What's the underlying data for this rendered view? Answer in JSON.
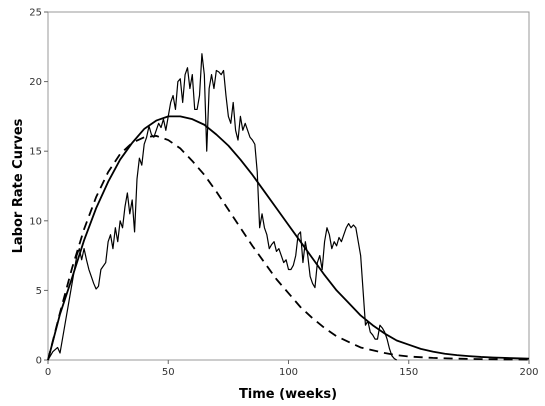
{
  "chart_data": {
    "type": "line",
    "title": "",
    "xlabel": "Time (weeks)",
    "ylabel": "Labor Rate Curves",
    "xlim": [
      0,
      200
    ],
    "ylim": [
      0,
      25
    ],
    "x_ticks": [
      0,
      50,
      100,
      150,
      200
    ],
    "y_ticks": [
      0,
      5,
      10,
      15,
      20,
      25
    ],
    "grid": false,
    "legend": "none",
    "series": [
      {
        "style": "solid-thin",
        "points": [
          [
            0,
            0
          ],
          [
            2,
            0.6
          ],
          [
            4,
            0.9
          ],
          [
            5,
            0.5
          ],
          [
            7,
            2.5
          ],
          [
            9,
            4.5
          ],
          [
            11,
            6.5
          ],
          [
            12,
            7.5
          ],
          [
            13,
            8.0
          ],
          [
            14,
            7.2
          ],
          [
            15,
            8.0
          ],
          [
            16,
            7.2
          ],
          [
            17,
            6.5
          ],
          [
            18,
            6.0
          ],
          [
            19,
            5.5
          ],
          [
            20,
            5.1
          ],
          [
            21,
            5.3
          ],
          [
            22,
            6.5
          ],
          [
            24,
            7.0
          ],
          [
            25,
            8.5
          ],
          [
            26,
            9.0
          ],
          [
            27,
            8.0
          ],
          [
            28,
            9.5
          ],
          [
            29,
            8.5
          ],
          [
            30,
            10.0
          ],
          [
            31,
            9.5
          ],
          [
            32,
            11.0
          ],
          [
            33,
            12.0
          ],
          [
            34,
            10.5
          ],
          [
            35,
            11.5
          ],
          [
            36,
            9.2
          ],
          [
            37,
            13.0
          ],
          [
            38,
            14.5
          ],
          [
            39,
            14.0
          ],
          [
            40,
            15.5
          ],
          [
            41,
            16.0
          ],
          [
            42,
            16.8
          ],
          [
            43,
            16.2
          ],
          [
            44,
            16.0
          ],
          [
            45,
            16.5
          ],
          [
            46,
            17.0
          ],
          [
            47,
            16.7
          ],
          [
            48,
            17.3
          ],
          [
            49,
            16.5
          ],
          [
            50,
            17.5
          ],
          [
            51,
            18.5
          ],
          [
            52,
            19.0
          ],
          [
            53,
            18.0
          ],
          [
            54,
            20.0
          ],
          [
            55,
            20.2
          ],
          [
            56,
            18.5
          ],
          [
            57,
            20.5
          ],
          [
            58,
            21.0
          ],
          [
            59,
            19.5
          ],
          [
            60,
            20.5
          ],
          [
            61,
            18.0
          ],
          [
            62,
            18.0
          ],
          [
            63,
            19.0
          ],
          [
            64,
            22.0
          ],
          [
            65,
            20.5
          ],
          [
            66,
            15.0
          ],
          [
            67,
            19.5
          ],
          [
            68,
            20.5
          ],
          [
            69,
            19.5
          ],
          [
            70,
            20.8
          ],
          [
            71,
            20.7
          ],
          [
            72,
            20.5
          ],
          [
            73,
            20.8
          ],
          [
            74,
            19.0
          ],
          [
            75,
            17.5
          ],
          [
            76,
            17.0
          ],
          [
            77,
            18.5
          ],
          [
            78,
            16.5
          ],
          [
            79,
            15.8
          ],
          [
            80,
            17.5
          ],
          [
            81,
            16.5
          ],
          [
            82,
            17.0
          ],
          [
            83,
            16.5
          ],
          [
            84,
            16.0
          ],
          [
            85,
            15.8
          ],
          [
            86,
            15.5
          ],
          [
            87,
            13.5
          ],
          [
            88,
            9.5
          ],
          [
            89,
            10.5
          ],
          [
            90,
            9.5
          ],
          [
            91,
            9.0
          ],
          [
            92,
            8.0
          ],
          [
            93,
            8.3
          ],
          [
            94,
            8.5
          ],
          [
            95,
            7.8
          ],
          [
            96,
            8.0
          ],
          [
            97,
            7.5
          ],
          [
            98,
            7.0
          ],
          [
            99,
            7.2
          ],
          [
            100,
            6.5
          ],
          [
            101,
            6.5
          ],
          [
            102,
            6.8
          ],
          [
            103,
            7.5
          ],
          [
            104,
            9.0
          ],
          [
            105,
            9.2
          ],
          [
            106,
            7.0
          ],
          [
            107,
            8.5
          ],
          [
            108,
            7.5
          ],
          [
            109,
            6.0
          ],
          [
            110,
            5.5
          ],
          [
            111,
            5.2
          ],
          [
            112,
            7.0
          ],
          [
            113,
            7.5
          ],
          [
            114,
            6.5
          ],
          [
            115,
            8.5
          ],
          [
            116,
            9.5
          ],
          [
            117,
            9.0
          ],
          [
            118,
            8.0
          ],
          [
            119,
            8.5
          ],
          [
            120,
            8.2
          ],
          [
            121,
            8.8
          ],
          [
            122,
            8.5
          ],
          [
            123,
            9.0
          ],
          [
            124,
            9.5
          ],
          [
            125,
            9.8
          ],
          [
            126,
            9.5
          ],
          [
            127,
            9.7
          ],
          [
            128,
            9.5
          ],
          [
            129,
            8.5
          ],
          [
            130,
            7.5
          ],
          [
            131,
            5.0
          ],
          [
            132,
            2.5
          ],
          [
            133,
            2.8
          ],
          [
            134,
            2.0
          ],
          [
            135,
            1.8
          ],
          [
            136,
            1.5
          ],
          [
            137,
            1.5
          ],
          [
            138,
            2.5
          ],
          [
            139,
            2.3
          ],
          [
            140,
            2.0
          ],
          [
            141,
            1.5
          ],
          [
            142,
            0.8
          ],
          [
            143,
            0.3
          ],
          [
            144,
            0.1
          ],
          [
            145,
            0
          ]
        ]
      },
      {
        "style": "solid-thick",
        "points": [
          [
            0,
            0
          ],
          [
            5,
            3.3
          ],
          [
            10,
            5.9
          ],
          [
            15,
            8.6
          ],
          [
            20,
            10.9
          ],
          [
            25,
            12.8
          ],
          [
            30,
            14.4
          ],
          [
            35,
            15.6
          ],
          [
            40,
            16.6
          ],
          [
            45,
            17.2
          ],
          [
            50,
            17.5
          ],
          [
            55,
            17.5
          ],
          [
            60,
            17.3
          ],
          [
            65,
            16.9
          ],
          [
            70,
            16.2
          ],
          [
            75,
            15.4
          ],
          [
            80,
            14.4
          ],
          [
            85,
            13.3
          ],
          [
            90,
            12.1
          ],
          [
            95,
            10.9
          ],
          [
            100,
            9.7
          ],
          [
            105,
            8.5
          ],
          [
            110,
            7.3
          ],
          [
            115,
            6.1
          ],
          [
            120,
            5.0
          ],
          [
            125,
            4.1
          ],
          [
            130,
            3.2
          ],
          [
            135,
            2.5
          ],
          [
            140,
            1.9
          ],
          [
            145,
            1.4
          ],
          [
            150,
            1.1
          ],
          [
            155,
            0.8
          ],
          [
            160,
            0.6
          ],
          [
            165,
            0.45
          ],
          [
            170,
            0.35
          ],
          [
            175,
            0.28
          ],
          [
            180,
            0.22
          ],
          [
            185,
            0.18
          ],
          [
            190,
            0.15
          ],
          [
            195,
            0.12
          ],
          [
            200,
            0.1
          ]
        ]
      },
      {
        "style": "dashed",
        "points": [
          [
            0,
            0
          ],
          [
            5,
            3.4
          ],
          [
            10,
            6.6
          ],
          [
            15,
            9.4
          ],
          [
            20,
            11.7
          ],
          [
            25,
            13.5
          ],
          [
            30,
            14.8
          ],
          [
            35,
            15.6
          ],
          [
            40,
            16.0
          ],
          [
            45,
            16.1
          ],
          [
            50,
            15.8
          ],
          [
            55,
            15.2
          ],
          [
            60,
            14.3
          ],
          [
            65,
            13.3
          ],
          [
            70,
            12.1
          ],
          [
            75,
            10.8
          ],
          [
            80,
            9.5
          ],
          [
            85,
            8.2
          ],
          [
            90,
            7.0
          ],
          [
            95,
            5.8
          ],
          [
            100,
            4.8
          ],
          [
            105,
            3.8
          ],
          [
            110,
            3.0
          ],
          [
            115,
            2.3
          ],
          [
            120,
            1.7
          ],
          [
            125,
            1.3
          ],
          [
            130,
            0.9
          ],
          [
            135,
            0.7
          ],
          [
            140,
            0.5
          ],
          [
            145,
            0.35
          ],
          [
            150,
            0.25
          ],
          [
            160,
            0.15
          ],
          [
            170,
            0.1
          ],
          [
            180,
            0.06
          ],
          [
            190,
            0.04
          ],
          [
            200,
            0.03
          ]
        ]
      }
    ]
  }
}
